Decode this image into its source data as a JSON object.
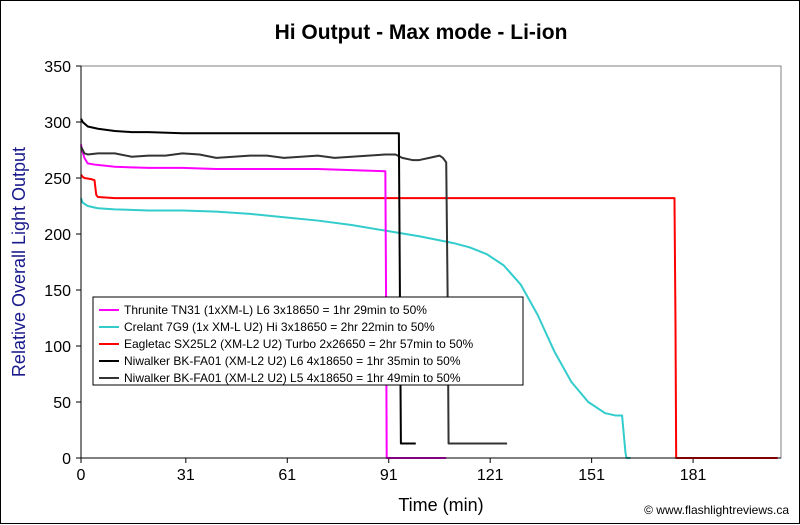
{
  "chart_data": {
    "type": "line",
    "title": "Hi Output - Max mode - Li-ion",
    "xlabel": "Time (min)",
    "ylabel": "Relative Overall Light Output",
    "xlim": [
      0,
      207
    ],
    "ylim": [
      0,
      350
    ],
    "xticks": [
      0,
      31,
      61,
      91,
      121,
      151,
      181
    ],
    "yticks": [
      0,
      50,
      100,
      150,
      200,
      250,
      300,
      350
    ],
    "credit": "© www.flashlightreviews.ca",
    "legend_position": "lower-left",
    "series": [
      {
        "name": "Thrunite TN31 (1xXM-L) L6 3x18650 = 1hr 29min to 50%",
        "color": "#ff00ff",
        "x": [
          0,
          0.3,
          1,
          2,
          4,
          10,
          20,
          30,
          40,
          50,
          60,
          70,
          80,
          90,
          90.2,
          90.4,
          108
        ],
        "y": [
          280,
          275,
          268,
          263,
          262,
          260,
          259,
          259,
          258,
          258,
          258,
          258,
          257,
          256,
          150,
          0,
          0
        ]
      },
      {
        "name": "Crelant 7G9 (1x XM-L U2) Hi 3x18650 = 2hr 22min to 50%",
        "color": "#33cccc",
        "x": [
          0,
          0.5,
          2,
          5,
          10,
          20,
          30,
          40,
          50,
          60,
          70,
          80,
          90,
          100,
          110,
          115,
          120,
          125,
          130,
          135,
          140,
          145,
          150,
          155,
          158,
          160,
          161,
          161.3,
          162.5
        ],
        "y": [
          232,
          228,
          225,
          223,
          222,
          221,
          221,
          220,
          218,
          215,
          212,
          208,
          203,
          198,
          192,
          188,
          182,
          172,
          155,
          128,
          95,
          68,
          50,
          40,
          38,
          38,
          5,
          0,
          0
        ]
      },
      {
        "name": "Eagletac SX25L2 (XM-L2 U2) Turbo 2x26650 = 2hr 57min to 50%",
        "color": "#ff0000",
        "x": [
          0,
          0.5,
          1,
          3,
          4,
          4.5,
          5,
          10,
          30,
          60,
          90,
          120,
          150,
          175.5,
          175.8,
          176,
          206
        ],
        "y": [
          253,
          251,
          250,
          249,
          248,
          235,
          233,
          232,
          232,
          232,
          232,
          232,
          232,
          232,
          120,
          0,
          0
        ]
      },
      {
        "name": "Niwalker BK-FA01 (XM-L2 U2) L6 4x18650 = 1hr 35min to 50%",
        "color": "#000000",
        "x": [
          0,
          0.5,
          2,
          5,
          10,
          15,
          20,
          30,
          40,
          50,
          60,
          70,
          80,
          90,
          94,
          94.3,
          94.6,
          97,
          99
        ],
        "y": [
          303,
          300,
          296,
          294,
          292,
          291,
          291,
          290,
          290,
          290,
          290,
          290,
          290,
          290,
          290,
          150,
          13,
          13,
          13
        ]
      },
      {
        "name": "Niwalker BK-FA01 (XM-L2 U2) L5 4x18650 = 1hr 49min to 50%",
        "color": "#333333",
        "x": [
          0,
          0.5,
          1,
          2,
          5,
          10,
          15,
          20,
          25,
          30,
          35,
          40,
          45,
          50,
          55,
          60,
          65,
          70,
          75,
          80,
          85,
          90,
          93,
          95,
          98,
          100,
          103,
          106,
          107,
          108,
          108.4,
          108.7,
          112,
          126
        ],
        "y": [
          278,
          275,
          272,
          271,
          272,
          272,
          269,
          270,
          270,
          272,
          271,
          268,
          269,
          270,
          270,
          268,
          269,
          270,
          268,
          269,
          270,
          271,
          271,
          268,
          266,
          266,
          268,
          270,
          268,
          264,
          150,
          13,
          13,
          13
        ]
      }
    ]
  }
}
